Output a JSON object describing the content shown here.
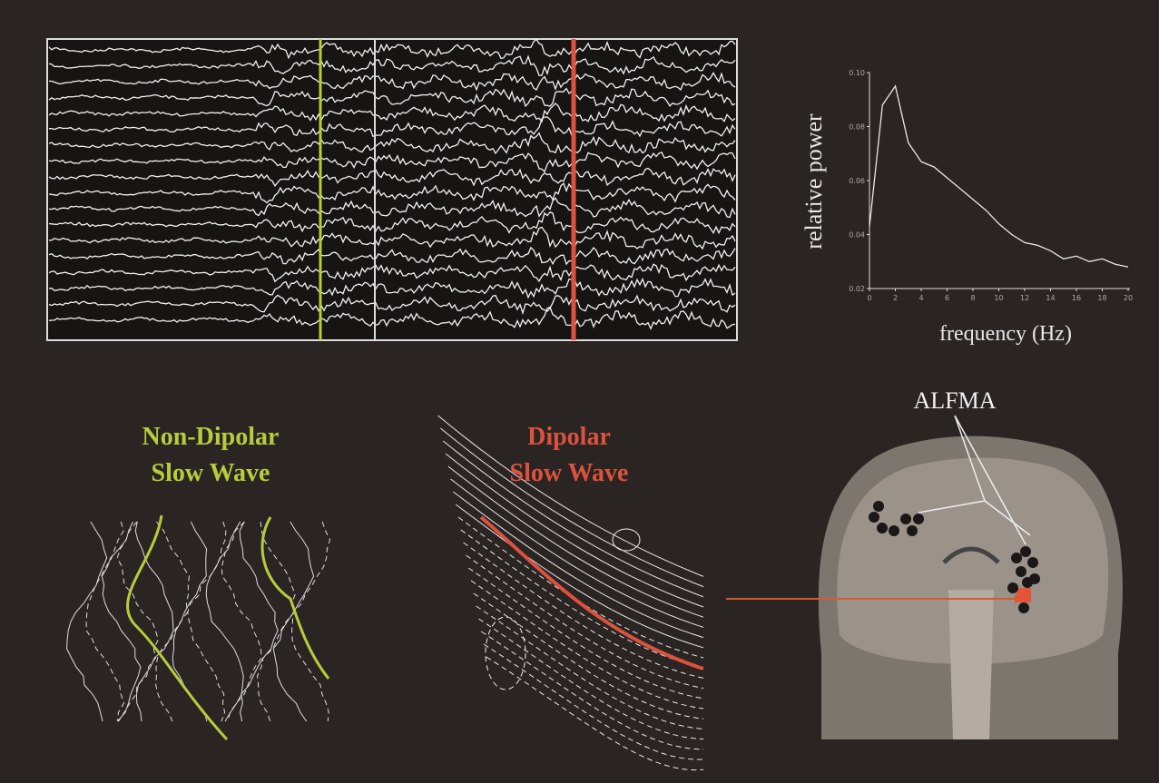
{
  "chart_data": {
    "type": "line",
    "y_label": "relative power",
    "x_label": "frequency (Hz)",
    "x": [
      0,
      1,
      2,
      3,
      4,
      5,
      6,
      7,
      8,
      9,
      10,
      11,
      12,
      13,
      14,
      15,
      16,
      17,
      18,
      19,
      20
    ],
    "values": [
      0.043,
      0.088,
      0.095,
      0.074,
      0.067,
      0.065,
      0.061,
      0.057,
      0.053,
      0.049,
      0.044,
      0.04,
      0.037,
      0.036,
      0.034,
      0.031,
      0.032,
      0.03,
      0.031,
      0.029,
      0.028
    ],
    "color": "#e8e8e8",
    "xlim": [
      0,
      20
    ],
    "xticks": [
      0,
      2,
      4,
      6,
      8,
      10,
      12,
      14,
      16,
      18,
      20
    ],
    "ylim": [
      0.02,
      0.1
    ],
    "yticks": [
      0.02,
      0.04,
      0.06,
      0.08,
      {
        "value": 0.1,
        "label": "0.10"
      }
    ]
  },
  "labels": {
    "non_dipolar": [
      "Non-Dipolar",
      "Slow Wave"
    ],
    "dipolar": [
      "Dipolar",
      "Slow Wave"
    ],
    "region": "ALFMA"
  }
}
